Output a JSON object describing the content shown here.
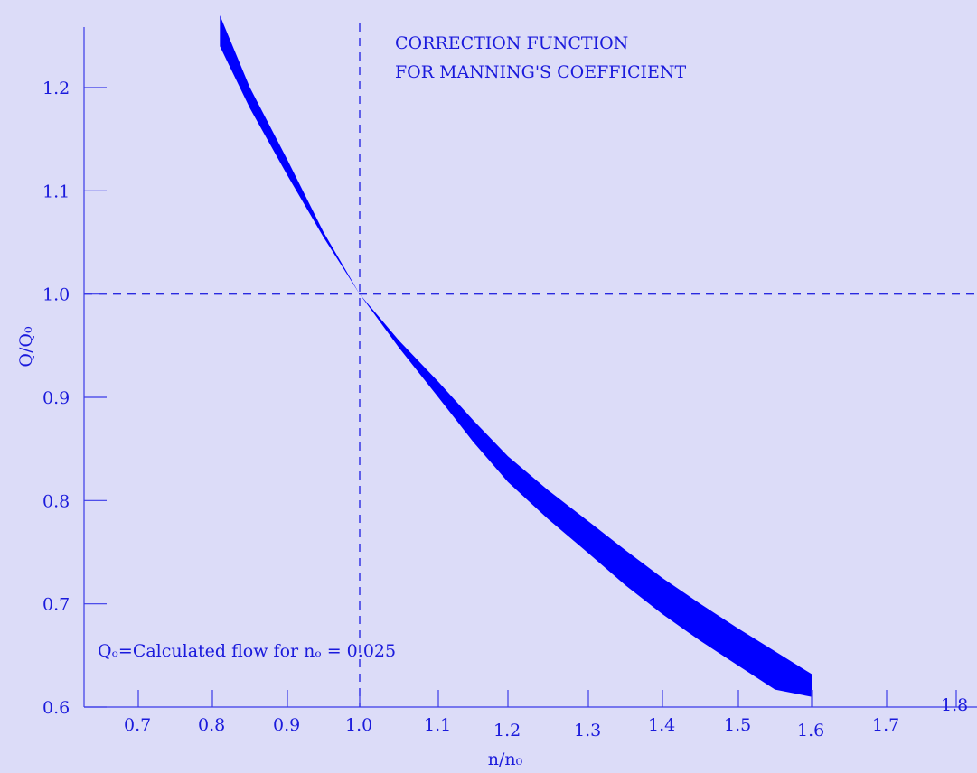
{
  "chart_data": {
    "type": "area",
    "title": "CORRECTION FUNCTION",
    "subtitle": "FOR MANNING'S COEFFICIENT",
    "xlabel": "n/n₀",
    "ylabel": "Q/Q₀",
    "annotation": "Qₒ=Calculated flow for nₒ = 0.025",
    "xlim": [
      0.6,
      1.8
    ],
    "ylim": [
      0.6,
      1.3
    ],
    "x_ticks": [
      "0.7",
      "0.8",
      "0.9",
      "1.0",
      "1.1",
      "1.2",
      "1.3",
      "1.4",
      "1.5",
      "1.6",
      "1.7",
      "1.8"
    ],
    "y_ticks": [
      "0.6",
      "0.7",
      "0.8",
      "0.9",
      "1.0",
      "1.1",
      "1.2"
    ],
    "reference_lines": {
      "x": 1.0,
      "y": 1.0
    },
    "band": {
      "x": [
        0.81,
        0.85,
        0.9,
        0.95,
        1.0,
        1.05,
        1.1,
        1.15,
        1.2,
        1.25,
        1.3,
        1.35,
        1.4,
        1.45,
        1.5,
        1.55,
        1.6
      ],
      "upper": [
        1.27,
        1.2,
        1.13,
        1.06,
        1.0,
        0.955,
        0.915,
        0.878,
        0.843,
        0.81,
        0.78,
        0.752,
        0.725,
        0.7,
        0.676,
        0.654,
        0.632
      ],
      "lower": [
        1.24,
        1.18,
        1.115,
        1.055,
        1.0,
        0.948,
        0.9,
        0.857,
        0.818,
        0.782,
        0.749,
        0.718,
        0.69,
        0.664,
        0.64,
        0.617,
        0.61
      ]
    },
    "grid": false,
    "colors": {
      "band": "#0000ff",
      "axis": "#3a3ae8",
      "text": "#1a1adc",
      "background": "#dcdcf8"
    }
  }
}
